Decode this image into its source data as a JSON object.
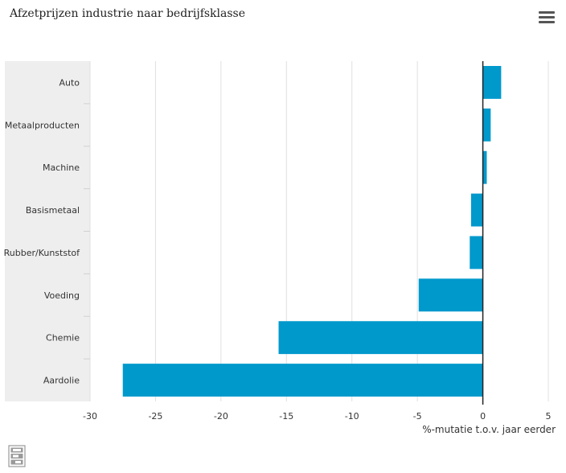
{
  "title": "Afzetprijzen industrie naar bedrijfsklasse",
  "menu_icon": "hamburger-menu-icon",
  "logo_icon": "cbs-logo",
  "colors": {
    "bar": "#0099cc",
    "band": "#eeeeee",
    "grid": "#e0e0e0",
    "zero_line": "#222222",
    "text": "#333333"
  },
  "chart_data": {
    "type": "bar",
    "orientation": "horizontal",
    "title": "Afzetprijzen industrie naar bedrijfsklasse",
    "categories": [
      "Auto",
      "Metaalproducten",
      "Machine",
      "Basismetaal",
      "Rubber/Kunststof",
      "Voeding",
      "Chemie",
      "Aardolie"
    ],
    "values": [
      1.4,
      0.6,
      0.3,
      -0.9,
      -1.0,
      -4.9,
      -15.6,
      -27.5
    ],
    "xlabel": "%-mutatie t.o.v. jaar eerder",
    "ylabel": "",
    "xlim": [
      -30,
      5
    ],
    "xticks": [
      -30,
      -25,
      -20,
      -15,
      -10,
      -5,
      0,
      5
    ],
    "grid": true,
    "legend": "none"
  }
}
